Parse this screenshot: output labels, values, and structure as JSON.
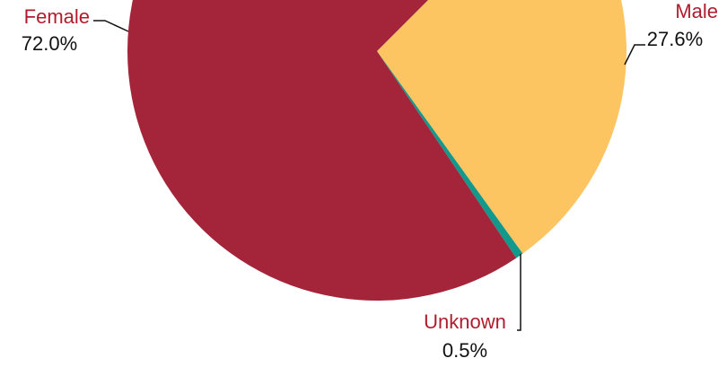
{
  "chart_data": {
    "type": "pie",
    "categories": [
      "Male",
      "Unknown",
      "Female"
    ],
    "values": [
      27.6,
      0.5,
      72
    ],
    "value_labels": [
      "27.6%",
      "0.5%",
      "72.0%"
    ],
    "colors": [
      "#fdc462",
      "#13998c",
      "#a4253a"
    ]
  }
}
